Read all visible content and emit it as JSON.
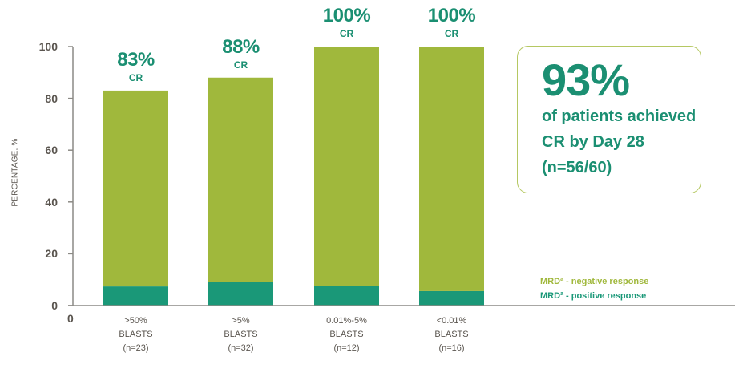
{
  "chart_data": {
    "type": "bar",
    "stacked": true,
    "title": "",
    "xlabel": "",
    "ylabel": "PERCENTAGE, %",
    "ylim": [
      0,
      100
    ],
    "yticks": [
      0,
      20,
      40,
      60,
      80,
      100
    ],
    "x_origin_label": "0",
    "grid": false,
    "categories": [
      ">50% BLASTS (n=23)",
      ">5% BLASTS (n=32)",
      "0.01%-5% BLASTS (n=12)",
      "<0.01% BLASTS (n=16)"
    ],
    "category_lines": [
      [
        ">50%",
        "BLASTS",
        "(n=23)"
      ],
      [
        ">5%",
        "BLASTS",
        "(n=32)"
      ],
      [
        "0.01%-5%",
        "BLASTS",
        "(n=12)"
      ],
      [
        "<0.01%",
        "BLASTS",
        "(n=16)"
      ]
    ],
    "series": [
      {
        "name": "MRD - positive response",
        "color": "#1a9878",
        "values": [
          7.4,
          9.0,
          7.5,
          5.6
        ]
      },
      {
        "name": "MRD - negative response",
        "color": "#a0b83c",
        "values": [
          75.6,
          79.0,
          92.5,
          94.4
        ]
      }
    ],
    "totals": [
      83,
      88,
      100,
      100
    ],
    "bar_annotations": [
      {
        "pct": "83%",
        "sub": "CR"
      },
      {
        "pct": "88%",
        "sub": "CR"
      },
      {
        "pct": "100%",
        "sub": "CR"
      },
      {
        "pct": "100%",
        "sub": "CR"
      }
    ],
    "legend": {
      "position": "right-bottom",
      "items": [
        {
          "label": "MRD",
          "sup": "a",
          "suffix": " - negative response",
          "color": "#a0b83c"
        },
        {
          "label": "MRD",
          "sup": "a",
          "suffix": " - positive response",
          "color": "#1a9878"
        }
      ]
    },
    "callout": {
      "value": "93%",
      "lines": [
        "of patients achieved",
        "CR by Day 28",
        "(n=56/60)"
      ],
      "border_color": "#b5c862",
      "text_color": "#1b8f72"
    }
  },
  "colors": {
    "axis": "#8c8a85",
    "label_text": "#5a554f",
    "accent_teal": "#1b8f72"
  }
}
